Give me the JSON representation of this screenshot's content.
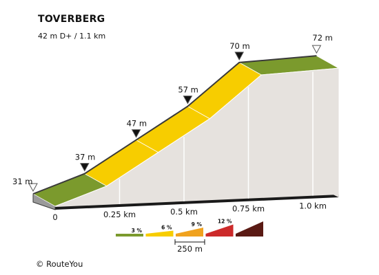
{
  "header": {
    "title": "TOVERBERG",
    "subtitle": "42 m D+ / 1.1 km"
  },
  "footer": {
    "copyright": "© RouteYou"
  },
  "chart_data": {
    "type": "area",
    "title": "TOVERBERG",
    "subtitle": "42 m D+ / 1.1 km",
    "x_unit": "km",
    "y_unit": "m",
    "profile": [
      {
        "x": 0.0,
        "y": 31
      },
      {
        "x": 0.2,
        "y": 37
      },
      {
        "x": 0.4,
        "y": 47
      },
      {
        "x": 0.6,
        "y": 57
      },
      {
        "x": 0.8,
        "y": 70
      },
      {
        "x": 1.1,
        "y": 72
      }
    ],
    "segments": [
      {
        "from_km": 0.0,
        "to_km": 0.2,
        "slope_class": "3 %"
      },
      {
        "from_km": 0.2,
        "to_km": 0.4,
        "slope_class": "6 %"
      },
      {
        "from_km": 0.4,
        "to_km": 0.6,
        "slope_class": "6 %"
      },
      {
        "from_km": 0.6,
        "to_km": 0.8,
        "slope_class": "6 %"
      },
      {
        "from_km": 0.8,
        "to_km": 1.1,
        "slope_class": "3 %"
      }
    ],
    "elevation_labels": [
      {
        "x": 0.0,
        "text": "31 m",
        "marker": "open"
      },
      {
        "x": 0.2,
        "text": "37 m",
        "marker": "filled"
      },
      {
        "x": 0.4,
        "text": "47 m",
        "marker": "filled"
      },
      {
        "x": 0.6,
        "text": "57 m",
        "marker": "filled"
      },
      {
        "x": 0.8,
        "text": "70 m",
        "marker": "filled"
      },
      {
        "x": 1.1,
        "text": "72 m",
        "marker": "open"
      }
    ],
    "x_ticks": [
      {
        "x": 0,
        "label": "0"
      },
      {
        "x": 0.25,
        "label": "0.25 km"
      },
      {
        "x": 0.5,
        "label": "0.5 km"
      },
      {
        "x": 0.75,
        "label": "0.75 km"
      },
      {
        "x": 1.0,
        "label": "1.0 km"
      }
    ],
    "legend": {
      "placement": "bottom-right",
      "scale_label": "250 m",
      "classes": [
        {
          "label": "3 %",
          "color": "#7b9a2d"
        },
        {
          "label": "6 %",
          "color": "#f7cd00"
        },
        {
          "label": "9 %",
          "color": "#f0a21e"
        },
        {
          "label": "12 %",
          "color": "#cc2a2a"
        },
        {
          "label": "",
          "color": "#5a1a14"
        }
      ]
    },
    "colors": {
      "side_wall": "#e6e2de",
      "edge": "#3a3a3a",
      "base_stripe": "#1a1a1a"
    }
  }
}
